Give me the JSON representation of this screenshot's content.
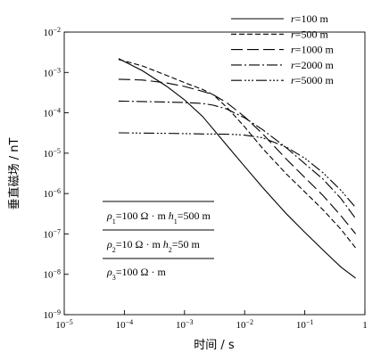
{
  "chart_data": {
    "type": "line",
    "xlabel": "时间 / s",
    "ylabel": "垂直磁场 / nT",
    "xscale": "log",
    "yscale": "log",
    "xlim": [
      1e-05,
      1
    ],
    "ylim": [
      1e-09,
      0.01
    ],
    "x_ticks": [
      {
        "value": 1e-05,
        "base": "10",
        "exp": "−5"
      },
      {
        "value": 0.0001,
        "base": "10",
        "exp": "−4"
      },
      {
        "value": 0.001,
        "base": "10",
        "exp": "−3"
      },
      {
        "value": 0.01,
        "base": "10",
        "exp": "−2"
      },
      {
        "value": 0.1,
        "base": "10",
        "exp": "−1"
      },
      {
        "value": 1,
        "base": "1",
        "exp": ""
      }
    ],
    "y_ticks": [
      {
        "value": 0.01,
        "base": "10",
        "exp": "−2"
      },
      {
        "value": 0.001,
        "base": "10",
        "exp": "−3"
      },
      {
        "value": 0.0001,
        "base": "10",
        "exp": "−4"
      },
      {
        "value": 1e-05,
        "base": "10",
        "exp": "−5"
      },
      {
        "value": 1e-06,
        "base": "10",
        "exp": "−6"
      },
      {
        "value": 1e-07,
        "base": "10",
        "exp": "−7"
      },
      {
        "value": 1e-08,
        "base": "10",
        "exp": "−8"
      },
      {
        "value": 1e-09,
        "base": "10",
        "exp": "−9"
      }
    ],
    "legend_position": "top-right",
    "series": [
      {
        "name": "r=100 m",
        "label_var": "r",
        "label_val": "=100 m",
        "dash": "none",
        "x": [
          8e-05,
          0.0002,
          0.0005,
          0.001,
          0.002,
          0.005,
          0.01,
          0.02,
          0.05,
          0.1,
          0.2,
          0.4,
          0.7
        ],
        "y": [
          0.0022,
          0.0011,
          0.00046,
          0.00021,
          8.1e-05,
          1.6e-05,
          4.7e-06,
          1.4e-06,
          3.1e-07,
          1.1e-07,
          4e-08,
          1.5e-08,
          8e-09
        ]
      },
      {
        "name": "r=500 m",
        "label_var": "r",
        "label_val": "=500 m",
        "dash": "6,3",
        "x": [
          8e-05,
          0.0002,
          0.0005,
          0.001,
          0.002,
          0.003,
          0.005,
          0.01,
          0.02,
          0.05,
          0.1,
          0.2,
          0.4,
          0.7
        ],
        "y": [
          0.0021,
          0.00145,
          0.00085,
          0.00056,
          0.00038,
          0.00028,
          0.00014,
          4.5e-05,
          1.3e-05,
          3e-06,
          1.1e-06,
          4e-07,
          1.3e-07,
          4.5e-08
        ]
      },
      {
        "name": "r=1000 m",
        "label_var": "r",
        "label_val": "=1000 m",
        "dash": "13,5",
        "x": [
          8e-05,
          0.0002,
          0.0005,
          0.001,
          0.002,
          0.003,
          0.005,
          0.01,
          0.02,
          0.05,
          0.1,
          0.2,
          0.4,
          0.7
        ],
        "y": [
          0.00068,
          0.00065,
          0.00055,
          0.00045,
          0.00034,
          0.00028,
          0.00018,
          8e-05,
          3e-05,
          7e-06,
          2.5e-06,
          9e-07,
          2.8e-07,
          1e-07
        ]
      },
      {
        "name": "r=2000 m",
        "label_var": "r",
        "label_val": "=2000 m",
        "dash": "12,3,2,3",
        "x": [
          8e-05,
          0.0002,
          0.0005,
          0.001,
          0.002,
          0.003,
          0.005,
          0.01,
          0.02,
          0.05,
          0.1,
          0.2,
          0.4,
          0.7
        ],
        "y": [
          0.000195,
          0.00019,
          0.000185,
          0.00018,
          0.00017,
          0.000155,
          0.000125,
          7.5e-05,
          3.8e-05,
          1.35e-05,
          5.5e-06,
          2.3e-06,
          7.5e-07,
          2.4e-07
        ]
      },
      {
        "name": "r=5000 m",
        "label_var": "r",
        "label_val": "=5000 m",
        "dash": "12,3,2,2,2,2,2,3",
        "x": [
          8e-05,
          0.0002,
          0.0005,
          0.001,
          0.002,
          0.003,
          0.005,
          0.007,
          0.01,
          0.02,
          0.05,
          0.1,
          0.2,
          0.4,
          0.7
        ],
        "y": [
          3.2e-05,
          3.15e-05,
          3.1e-05,
          3.05e-05,
          3e-05,
          3e-05,
          2.95e-05,
          2.9e-05,
          2.8e-05,
          2.4e-05,
          1.4e-05,
          7.5e-06,
          3.3e-06,
          1.2e-06,
          4.5e-07
        ]
      }
    ],
    "annotation": {
      "layers": [
        {
          "rho_sym": "ρ",
          "rho_sub": "1",
          "rho_val": "=100 Ω · m",
          "h_sym": "h",
          "h_sub": "1",
          "h_val": "=500 m"
        },
        {
          "rho_sym": "ρ",
          "rho_sub": "2",
          "rho_val": "=10 Ω · m",
          "h_sym": "h",
          "h_sub": "2",
          "h_val": "=50 m"
        },
        {
          "rho_sym": "ρ",
          "rho_sub": "3",
          "rho_val": "=100 Ω · m",
          "h_sym": "",
          "h_sub": "",
          "h_val": ""
        }
      ]
    }
  }
}
